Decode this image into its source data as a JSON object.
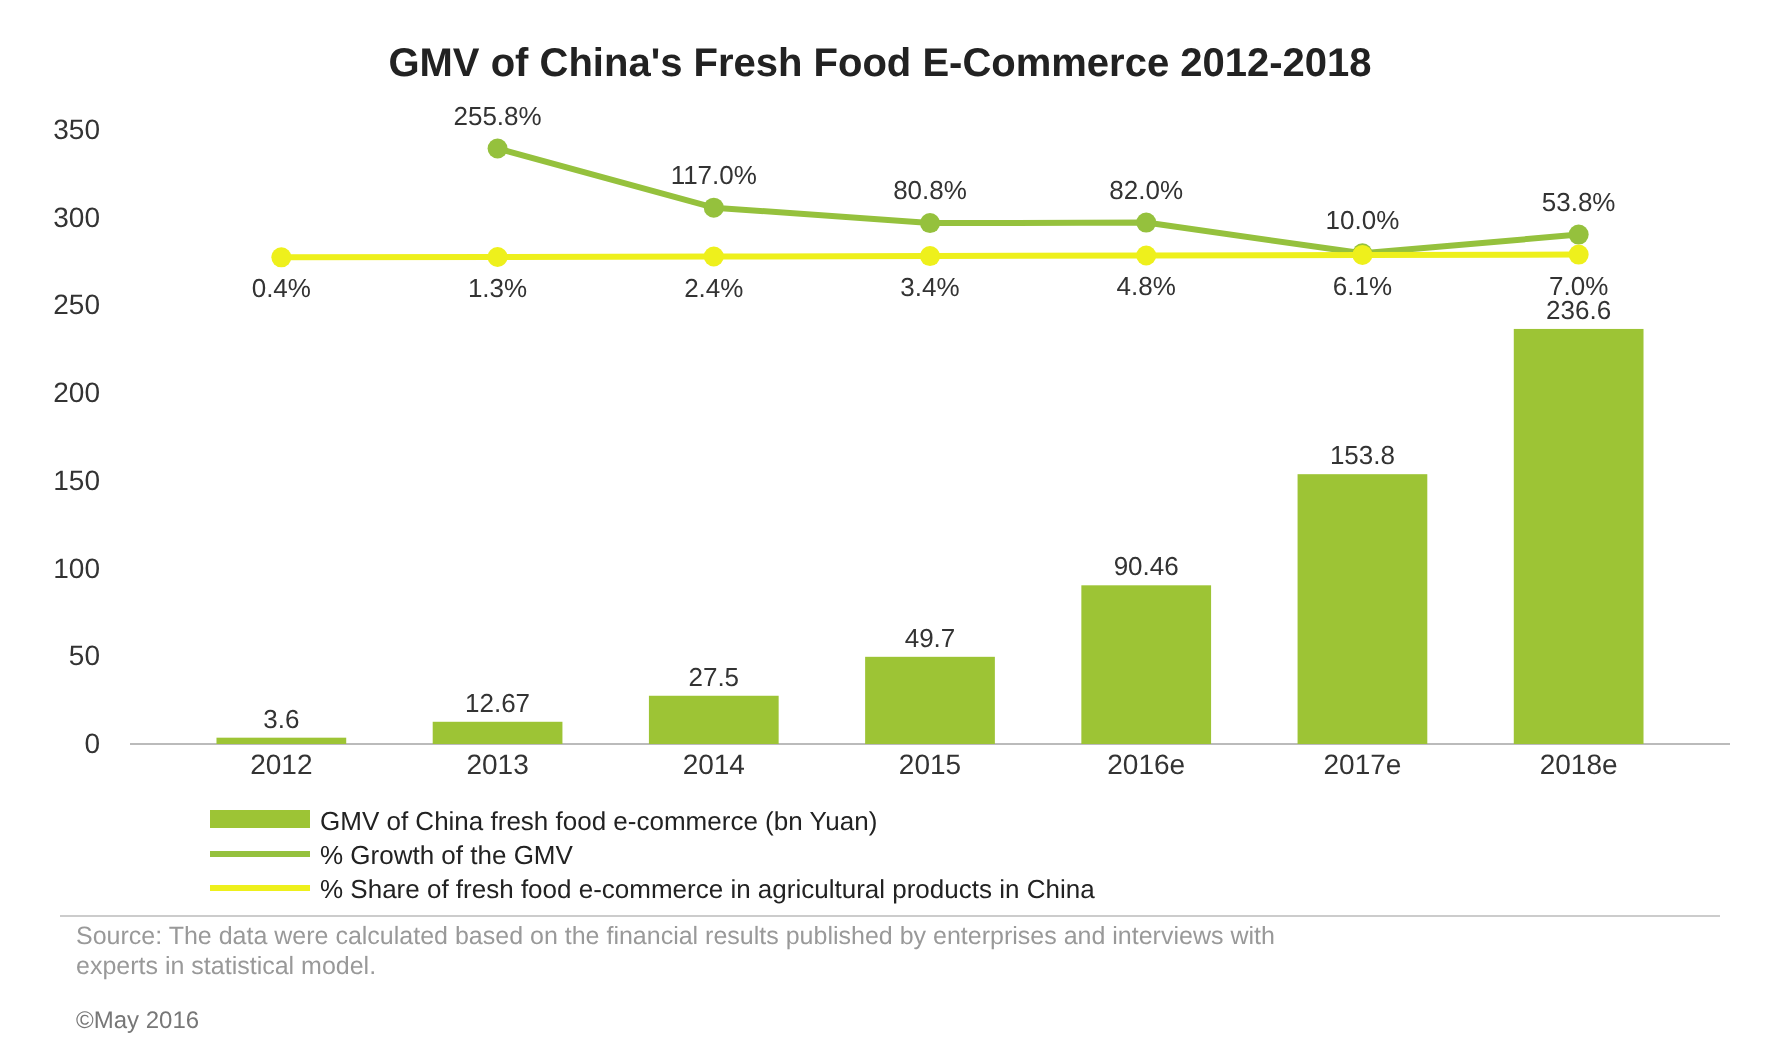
{
  "chart_data": {
    "type": "bar",
    "title": "GMV of China's Fresh Food E-Commerce 2012-2018",
    "categories": [
      "2012",
      "2013",
      "2014",
      "2015",
      "2016e",
      "2017e",
      "2018e"
    ],
    "series": [
      {
        "name": "GMV of China fresh food e-commerce (bn Yuan)",
        "color": "#9dc435",
        "values": [
          3.6,
          12.67,
          27.5,
          49.7,
          90.46,
          153.8,
          236.6
        ]
      },
      {
        "name": "% Growth of the GMV",
        "type": "line",
        "axis": "y2",
        "color": "#95c13d",
        "values": [
          null,
          255.8,
          117.0,
          80.8,
          82.0,
          10.0,
          53.8
        ],
        "value_labels": [
          null,
          "255.8%",
          "117.0%",
          "80.8%",
          "82.0%",
          "10.0%",
          "53.8%"
        ]
      },
      {
        "name": "% Share of fresh food e-commerce in agricultural products in China",
        "type": "line",
        "axis": "y2",
        "color": "#eef01c",
        "values": [
          0.4,
          1.3,
          2.4,
          3.4,
          4.8,
          6.1,
          7.0
        ],
        "value_labels": [
          "0.4%",
          "1.3%",
          "2.4%",
          "3.4%",
          "4.8%",
          "6.1%",
          "7.0%"
        ]
      }
    ],
    "ylim": [
      0,
      350
    ],
    "yticks": [
      0,
      50,
      100,
      150,
      200,
      250,
      300,
      350
    ],
    "data_labels": true,
    "marker": "circle",
    "grid": false,
    "legend": "bottom",
    "annotations": [
      "Source: The data were calculated based on the financial results published by enterprises and interviews with experts in statistical model.",
      "©May 2016"
    ]
  }
}
